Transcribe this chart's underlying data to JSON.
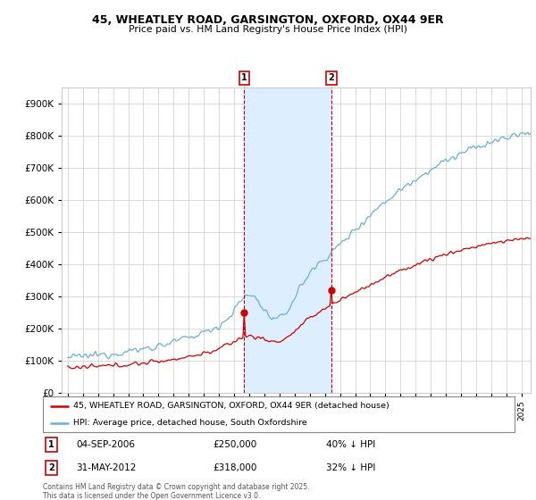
{
  "title1": "45, WHEATLEY ROAD, GARSINGTON, OXFORD, OX44 9ER",
  "title2": "Price paid vs. HM Land Registry's House Price Index (HPI)",
  "ytick_vals": [
    0,
    100000,
    200000,
    300000,
    400000,
    500000,
    600000,
    700000,
    800000,
    900000
  ],
  "ylim": [
    0,
    950000
  ],
  "marker1_date": "04-SEP-2006",
  "marker1_price": 250000,
  "marker1_hpi": "40% ↓ HPI",
  "marker1_x": 2006.67,
  "marker2_date": "31-MAY-2012",
  "marker2_price": 318000,
  "marker2_hpi": "32% ↓ HPI",
  "marker2_x": 2012.42,
  "legend_line1": "45, WHEATLEY ROAD, GARSINGTON, OXFORD, OX44 9ER (detached house)",
  "legend_line2": "HPI: Average price, detached house, South Oxfordshire",
  "footnote": "Contains HM Land Registry data © Crown copyright and database right 2025.\nThis data is licensed under the Open Government Licence v3.0.",
  "red_color": "#cc0000",
  "blue_color": "#6baed6",
  "marker_box_color": "#cc0000",
  "shaded_color": "#ddeeff",
  "grid_color": "#cccccc",
  "bg_color": "#ffffff"
}
